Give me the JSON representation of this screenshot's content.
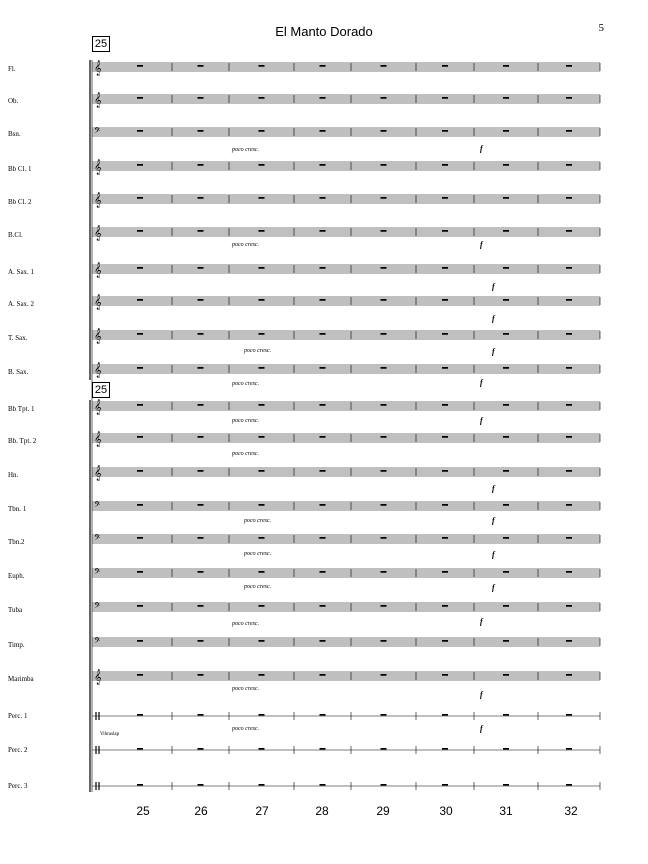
{
  "title": "El Manto Dorado",
  "page_number": "5",
  "rehearsal_mark": "25",
  "instruments": [
    "Fl.",
    "Ob.",
    "Bsn.",
    "Bb Cl. 1",
    "Bb Cl. 2",
    "B.Cl.",
    "A. Sax. 1",
    "A. Sax. 2",
    "T. Sax.",
    "B. Sax.",
    "Bb Tpt. 1",
    "Bb. Tpt. 2",
    "Hn.",
    "Tbn. 1",
    "Tbn.2",
    "Euph.",
    "Tuba",
    "Timp.",
    "Marimba",
    "Perc. 1",
    "Perc. 2",
    "Perc. 3"
  ],
  "measure_numbers": [
    "25",
    "26",
    "27",
    "28",
    "29",
    "30",
    "31",
    "32"
  ],
  "dynamics": {
    "poco_cresc": "poco cresc.",
    "forte": "f"
  },
  "perc_instrument": "Vibraslap"
}
